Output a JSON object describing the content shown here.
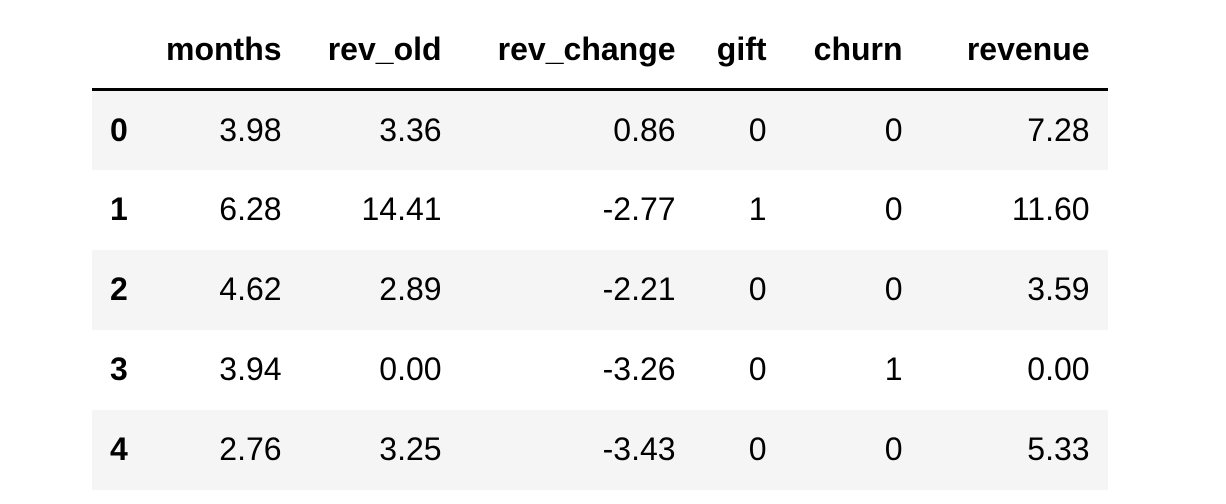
{
  "table": {
    "columns": [
      "",
      "months",
      "rev_old",
      "rev_change",
      "gift",
      "churn",
      "revenue"
    ],
    "rows": [
      {
        "index": "0",
        "cells": [
          "3.98",
          "3.36",
          "0.86",
          "0",
          "0",
          "7.28"
        ]
      },
      {
        "index": "1",
        "cells": [
          "6.28",
          "14.41",
          "-2.77",
          "1",
          "0",
          "11.60"
        ]
      },
      {
        "index": "2",
        "cells": [
          "4.62",
          "2.89",
          "-2.21",
          "0",
          "0",
          "3.59"
        ]
      },
      {
        "index": "3",
        "cells": [
          "3.94",
          "0.00",
          "-3.26",
          "0",
          "1",
          "0.00"
        ]
      },
      {
        "index": "4",
        "cells": [
          "2.76",
          "3.25",
          "-3.43",
          "0",
          "0",
          "5.33"
        ]
      }
    ]
  }
}
